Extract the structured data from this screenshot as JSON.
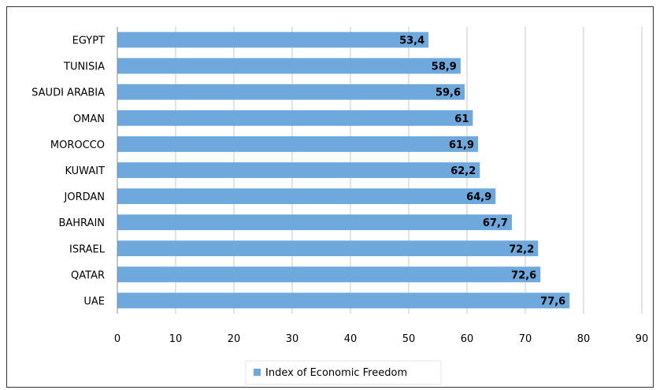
{
  "chart_data": {
    "type": "bar",
    "orientation": "horizontal",
    "categories": [
      "EGYPT",
      "TUNISIA",
      "SAUDI ARABIA",
      "OMAN",
      "MOROCCO",
      "KUWAIT",
      "JORDAN",
      "BAHRAIN",
      "ISRAEL",
      "QATAR",
      "UAE"
    ],
    "series": [
      {
        "name": "Index of Economic Freedom",
        "values": [
          53.4,
          58.9,
          59.6,
          61,
          61.9,
          62.2,
          64.9,
          67.7,
          72.2,
          72.6,
          77.6
        ],
        "labels": [
          "53,4",
          "58,9",
          "59,6",
          "61",
          "61,9",
          "62,2",
          "64,9",
          "67,7",
          "72,2",
          "72,6",
          "77,6"
        ],
        "color": "#6fa8dc"
      }
    ],
    "xticks": [
      "0",
      "10",
      "20",
      "30",
      "40",
      "50",
      "60",
      "70",
      "80",
      "90"
    ],
    "xlim": [
      0,
      90
    ],
    "grid": true,
    "legend_position": "bottom",
    "title": "",
    "xlabel": "",
    "ylabel": ""
  }
}
